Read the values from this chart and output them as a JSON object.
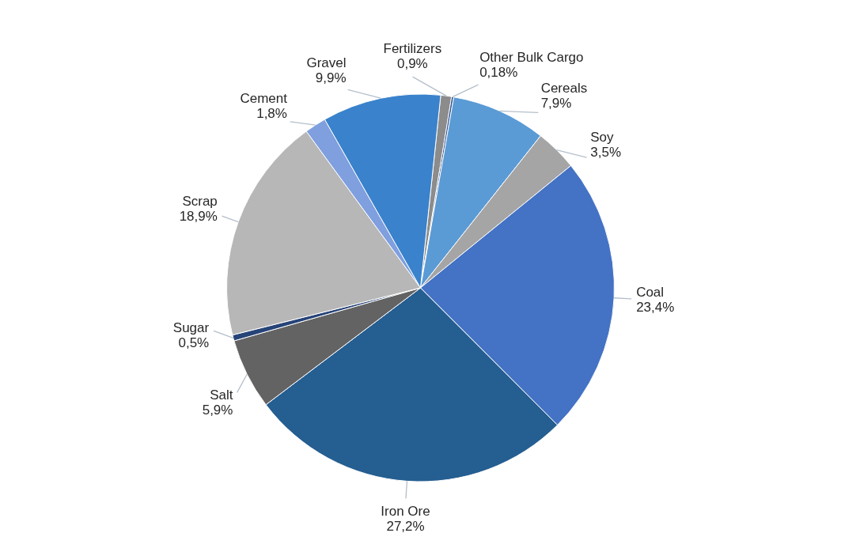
{
  "chart_data": {
    "type": "pie",
    "categories": [
      "Fertilizers",
      "Other Bulk Cargo",
      "Cereals",
      "Soy",
      "Coal",
      "Iron Ore",
      "Salt",
      "Sugar",
      "Scrap",
      "Cement",
      "Gravel"
    ],
    "values": [
      0.9,
      0.18,
      7.9,
      3.5,
      23.4,
      27.2,
      5.9,
      0.5,
      18.9,
      1.8,
      9.9
    ],
    "colors": [
      "#8c8c8c",
      "#2f4f8f",
      "#5b9bd5",
      "#a5a5a5",
      "#4472c4",
      "#255e91",
      "#636363",
      "#264478",
      "#b7b7b7",
      "#7f9fdf",
      "#3a82cc"
    ],
    "value_labels": [
      "0,9%",
      "0,18%",
      "7,9%",
      "3,5%",
      "23,4%",
      "27,2%",
      "5,9%",
      "0,5%",
      "18,9%",
      "1,8%",
      "9,9%"
    ]
  }
}
